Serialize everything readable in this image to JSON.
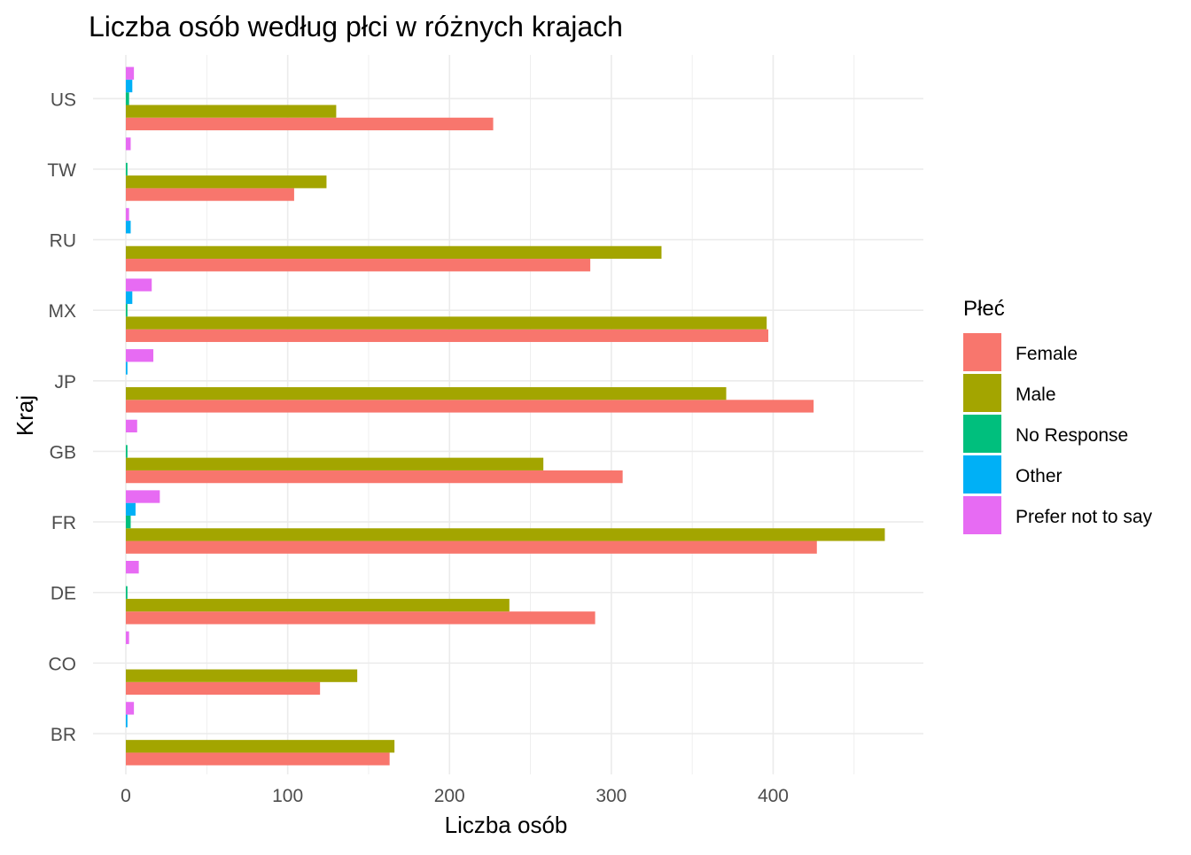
{
  "chart_data": {
    "type": "bar",
    "orientation": "horizontal",
    "title": "Liczba osób według płci w różnych krajach",
    "xlabel": "Liczba osób",
    "ylabel": "Kraj",
    "xlim": [
      0,
      490
    ],
    "xticks": [
      0,
      100,
      200,
      300,
      400
    ],
    "grid": true,
    "legend_position": "right",
    "legend_title": "Płeć",
    "categories": [
      "BR",
      "CO",
      "DE",
      "FR",
      "GB",
      "JP",
      "MX",
      "RU",
      "TW",
      "US"
    ],
    "series": [
      {
        "name": "Female",
        "color": "#F8766D",
        "values": [
          163,
          120,
          290,
          427,
          307,
          425,
          397,
          287,
          104,
          227
        ]
      },
      {
        "name": "Male",
        "color": "#A3A500",
        "values": [
          166,
          143,
          237,
          469,
          258,
          371,
          396,
          331,
          124,
          130
        ]
      },
      {
        "name": "No Response",
        "color": "#00BF7D",
        "values": [
          0,
          0,
          1,
          3,
          1,
          0,
          1,
          0,
          1,
          2
        ]
      },
      {
        "name": "Other",
        "color": "#00B0F6",
        "values": [
          1,
          0,
          0,
          6,
          0,
          1,
          4,
          3,
          0,
          4
        ]
      },
      {
        "name": "Prefer not to say",
        "color": "#E76BF3",
        "values": [
          5,
          2,
          8,
          21,
          7,
          17,
          16,
          2,
          3,
          5
        ]
      }
    ]
  }
}
